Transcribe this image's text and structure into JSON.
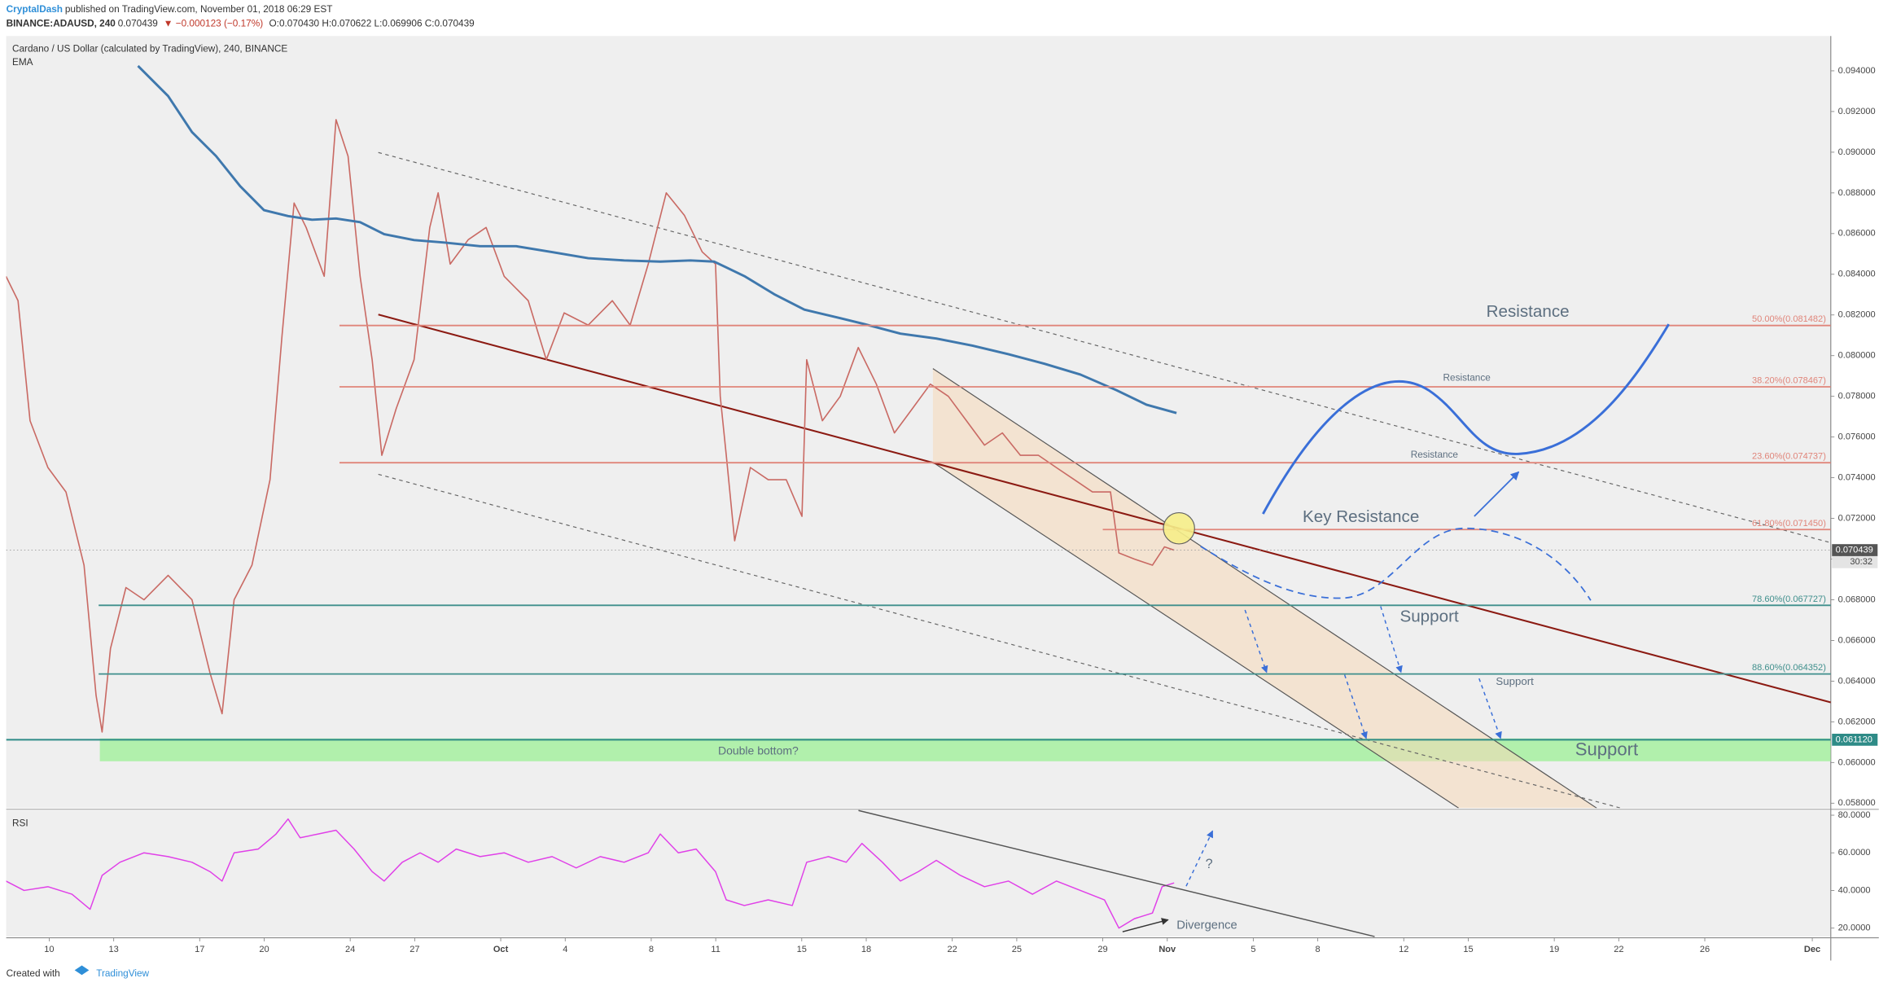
{
  "header": {
    "author": "CryptalDash",
    "published": "published on TradingView.com, November 01, 2018 06:29 EST",
    "symbol": "BINANCE:ADAUSD, 240",
    "last": "0.070439",
    "change": "▼ −0.000123 (−0.17%)",
    "ohlc": "O:0.070430 H:0.070622 L:0.069906 C:0.070439"
  },
  "chart_data": [
    {
      "type": "line",
      "title": "Cardano / US Dollar (calculated by TradingView), 240, BINANCE",
      "xlim": [
        8,
        92.86
      ],
      "xticks": [
        10,
        13,
        17,
        20,
        24,
        27,
        {
          "value": 31,
          "label": "Oct"
        },
        {
          "value": 34,
          "label": "4"
        },
        {
          "value": 38,
          "label": "8"
        },
        {
          "value": 41,
          "label": "11"
        },
        {
          "value": 45,
          "label": "15"
        },
        {
          "value": 48,
          "label": "18"
        },
        {
          "value": 52,
          "label": "22"
        },
        {
          "value": 55,
          "label": "25"
        },
        {
          "value": 59,
          "label": "29"
        },
        {
          "value": 62,
          "label": "Nov"
        },
        {
          "value": 66,
          "label": "5"
        },
        {
          "value": 69,
          "label": "8"
        },
        {
          "value": 73,
          "label": "12"
        },
        {
          "value": 76,
          "label": "15"
        },
        {
          "value": 80,
          "label": "19"
        },
        {
          "value": 83,
          "label": "22"
        },
        {
          "value": 87,
          "label": "26"
        },
        {
          "value": 92,
          "label": "Dec"
        }
      ],
      "ylim": [
        0.05776,
        0.09571
      ],
      "yticks": [
        {
          "value": 0.058,
          "label": "0.058000"
        },
        {
          "value": 0.06,
          "label": "0.060000"
        },
        {
          "value": 0.062,
          "label": "0.062000"
        },
        {
          "value": 0.064,
          "label": "0.064000"
        },
        {
          "value": 0.066,
          "label": "0.066000"
        },
        {
          "value": 0.068,
          "label": "0.068000"
        },
        {
          "value": 0.07,
          "label": "0.070000"
        },
        {
          "value": 0.072,
          "label": "0.072000"
        },
        {
          "value": 0.074,
          "label": "0.074000"
        },
        {
          "value": 0.076,
          "label": "0.076000"
        },
        {
          "value": 0.078,
          "label": "0.078000"
        },
        {
          "value": 0.08,
          "label": "0.080000"
        },
        {
          "value": 0.082,
          "label": "0.082000"
        },
        {
          "value": 0.084,
          "label": "0.084000"
        },
        {
          "value": 0.086,
          "label": "0.086000"
        },
        {
          "value": 0.088,
          "label": "0.088000"
        },
        {
          "value": 0.09,
          "label": "0.090000"
        },
        {
          "value": 0.092,
          "label": "0.092000"
        },
        {
          "value": 0.094,
          "label": "0.094000"
        }
      ],
      "series": [
        {
          "color": "#c96a64",
          "x": [
            7.99,
            8.55,
            9.11,
            9.94,
            10.78,
            11.62,
            12.18,
            12.46,
            12.85,
            13.57,
            14.41,
            15.53,
            16.64,
            17.48,
            18.04,
            18.6,
            19.43,
            20.27,
            20.83,
            21.39,
            21.95,
            22.79,
            23.34,
            23.9,
            24.46,
            25.02,
            25.47,
            26.14,
            26.97,
            27.7,
            28.09,
            28.65,
            29.49,
            30.32,
            31.16,
            32.28,
            33.12,
            33.95,
            35.07,
            36.19,
            37.02,
            37.86,
            38.7,
            39.54,
            40.37,
            40.99,
            41.21,
            41.49,
            41.88,
            42.61,
            43.44,
            44.28,
            45.01,
            45.23,
            45.96,
            46.79,
            47.63,
            48.47,
            49.31,
            50.15,
            50.98,
            51.82,
            52.66,
            53.5,
            54.33,
            55.17,
            56.01,
            56.84,
            57.68,
            58.52,
            59.36,
            59.75,
            60.47,
            61.31,
            61.87,
            62.32
          ],
          "values": [
            0.0839,
            0.0827,
            0.0768,
            0.0745,
            0.0733,
            0.0697,
            0.0633,
            0.0615,
            0.0656,
            0.0686,
            0.068,
            0.0692,
            0.068,
            0.0644,
            0.0624,
            0.068,
            0.0697,
            0.0739,
            0.081,
            0.0875,
            0.0863,
            0.0839,
            0.0916,
            0.0898,
            0.0839,
            0.0798,
            0.0751,
            0.0774,
            0.0798,
            0.0863,
            0.088,
            0.0845,
            0.0857,
            0.0863,
            0.0839,
            0.0827,
            0.0798,
            0.0821,
            0.0815,
            0.0827,
            0.0815,
            0.0845,
            0.088,
            0.0869,
            0.0851,
            0.0845,
            0.078,
            0.0751,
            0.0709,
            0.0745,
            0.0739,
            0.0739,
            0.0721,
            0.0798,
            0.0768,
            0.078,
            0.0804,
            0.0786,
            0.0762,
            0.0774,
            0.0786,
            0.078,
            0.0768,
            0.0756,
            0.0762,
            0.0751,
            0.0751,
            0.0745,
            0.0739,
            0.0733,
            0.0733,
            0.0703,
            0.07,
            0.0697,
            0.0706,
            0.070439
          ]
        },
        {
          "name": "EMA",
          "color": "#3f78ad",
          "x": [
            14.13,
            15.53,
            16.64,
            17.76,
            18.88,
            19.99,
            21.11,
            22.23,
            23.34,
            24.46,
            25.58,
            26.97,
            28.37,
            30.04,
            31.72,
            33.39,
            35.07,
            36.74,
            38.42,
            39.82,
            40.93,
            42.33,
            43.72,
            45.12,
            46.79,
            47.91,
            49.59,
            51.26,
            52.94,
            54.61,
            56.29,
            57.96,
            59.64,
            61.03,
            62.43
          ],
          "values": [
            0.09424,
            0.09276,
            0.09099,
            0.08981,
            0.08833,
            0.08715,
            0.08686,
            0.08668,
            0.08674,
            0.08656,
            0.08597,
            0.08568,
            0.08556,
            0.08538,
            0.08538,
            0.08509,
            0.08479,
            0.08468,
            0.08462,
            0.08468,
            0.08462,
            0.08391,
            0.08302,
            0.08226,
            0.08184,
            0.08155,
            0.08108,
            0.08084,
            0.08049,
            0.08007,
            0.0796,
            0.07907,
            0.0783,
            0.07759,
            0.07718
          ]
        }
      ],
      "levels": [
        {
          "label": "50.00%(0.081482)",
          "value": 0.081482,
          "color": "#e0857a",
          "from": 23.5
        },
        {
          "label": "38.20%(0.078467)",
          "value": 0.078467,
          "color": "#e0857a",
          "from": 23.5
        },
        {
          "label": "23.60%(0.074737)",
          "value": 0.074737,
          "color": "#e0857a",
          "from": 23.5
        },
        {
          "label": "61.80%(0.071450)",
          "value": 0.07145,
          "color": "#e0857a",
          "from": 59.0
        },
        {
          "label": "78.60%(0.067727)",
          "value": 0.067727,
          "color": "#3f8f8c",
          "from": 12.3
        },
        {
          "label": "88.60%(0.064352)",
          "value": 0.064352,
          "color": "#3f8f8c",
          "from": 12.3
        }
      ],
      "support_tag": {
        "value": 0.06112,
        "label": "0.061120",
        "color": "#2e8b87"
      },
      "last_tag": {
        "value": 0.070439,
        "label": "0.070439",
        "color": "#555555"
      },
      "countdown": "30:32"
    },
    {
      "type": "line",
      "title": "RSI",
      "ylim": [
        15.5,
        82.5
      ],
      "yticks": [
        {
          "value": 20,
          "label": "20.0000"
        },
        {
          "value": 40,
          "label": "40.0000"
        },
        {
          "value": 60,
          "label": "60.0000"
        },
        {
          "value": 80,
          "label": "80.0000"
        }
      ],
      "series": [
        {
          "color": "#e040e8",
          "x": [
            7.99,
            8.83,
            9.94,
            11.06,
            11.9,
            12.46,
            13.29,
            14.41,
            15.53,
            16.64,
            17.48,
            18.04,
            18.6,
            19.72,
            20.55,
            21.11,
            21.67,
            22.51,
            23.34,
            24.18,
            25.02,
            25.58,
            26.42,
            27.25,
            28.09,
            28.93,
            30.04,
            31.16,
            32.28,
            33.39,
            34.51,
            35.63,
            36.74,
            37.86,
            38.42,
            39.26,
            40.09,
            40.99,
            41.49,
            42.33,
            43.44,
            44.56,
            45.23,
            46.24,
            47.07,
            47.8,
            48.75,
            49.59,
            50.42,
            51.26,
            52.38,
            53.5,
            54.61,
            55.73,
            56.85,
            57.96,
            59.08,
            59.75,
            60.47,
            61.31,
            61.76,
            62.32
          ],
          "values": [
            45,
            40,
            42,
            38,
            30,
            48,
            55,
            60,
            58,
            55,
            50,
            45,
            60,
            62,
            70,
            78,
            68,
            70,
            72,
            62,
            50,
            45,
            55,
            60,
            55,
            62,
            58,
            60,
            55,
            58,
            52,
            58,
            55,
            60,
            70,
            60,
            62,
            50,
            35,
            32,
            35,
            32,
            55,
            58,
            55,
            65,
            55,
            45,
            50,
            56,
            48,
            42,
            45,
            38,
            45,
            40,
            35,
            20,
            25,
            28,
            42,
            44
          ]
        }
      ]
    }
  ],
  "annotations": {
    "resistance_major": "Resistance",
    "resistance_upper": "Resistance",
    "resistance_lower": "Resistance",
    "key_resistance": "Key Resistance",
    "support_upper": "Support",
    "support_middle": "Support",
    "support_major": "Support",
    "double_bottom": "Double bottom?",
    "question": "?",
    "divergence": "Divergence"
  },
  "footer": {
    "created": "Created with",
    "brand": "TradingView"
  }
}
